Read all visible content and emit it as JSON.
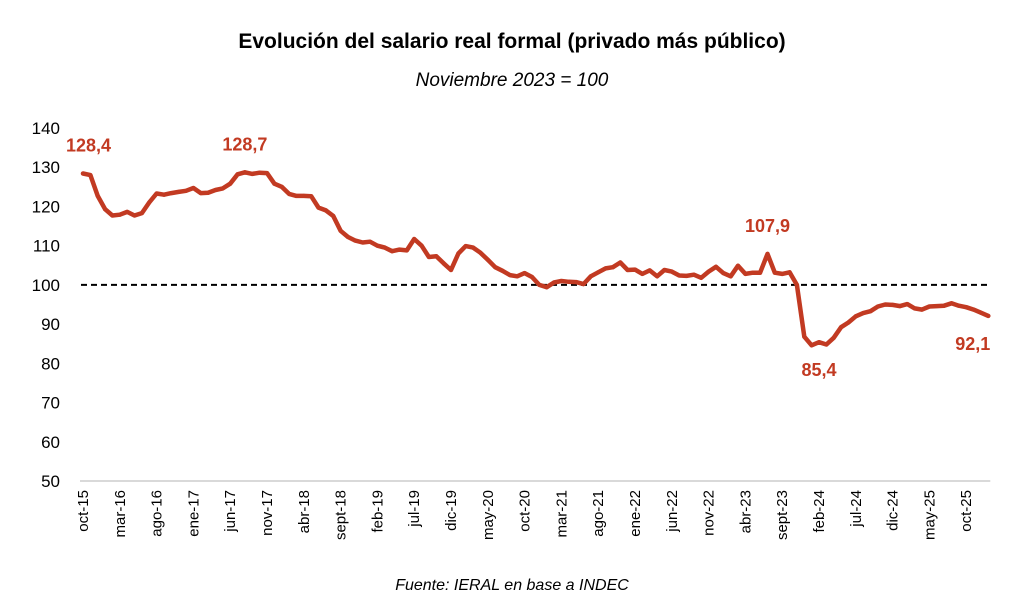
{
  "chart_data": {
    "type": "line",
    "title": "Evolución del salario real formal (privado más público)",
    "subtitle": "Noviembre 2023 = 100",
    "source": "Fuente: IERAL en base a INDEC",
    "xlabel": "",
    "ylabel": "",
    "ylim": [
      50,
      140
    ],
    "yticks": [
      "140",
      "130",
      "120",
      "110",
      "100",
      "90",
      "80",
      "70",
      "60",
      "50"
    ],
    "ytick_values": [
      140,
      130,
      120,
      110,
      100,
      90,
      80,
      70,
      60,
      50
    ],
    "xtick_labels": [
      "oct-15",
      "mar-16",
      "ago-16",
      "ene-17",
      "jun-17",
      "nov-17",
      "abr-18",
      "sept-18",
      "feb-19",
      "jul-19",
      "dic-19",
      "may-20",
      "oct-20",
      "mar-21",
      "ago-21",
      "ene-22",
      "jun-22",
      "nov-22",
      "abr-23",
      "sept-23",
      "feb-24",
      "jul-24",
      "dic-24",
      "may-25",
      "oct-25"
    ],
    "xtick_step_months": 5,
    "start_month": "oct-15",
    "reference_line": {
      "value": 100,
      "style": "dashed",
      "color": "#000000"
    },
    "series": [
      {
        "name": "Salario real formal",
        "color": "#c23a22",
        "values": [
          128.4,
          128.0,
          122.7,
          119.3,
          117.7,
          117.9,
          118.6,
          117.7,
          118.3,
          121.0,
          123.3,
          123.0,
          123.4,
          123.7,
          124.0,
          124.7,
          123.4,
          123.5,
          124.2,
          124.6,
          125.8,
          128.2,
          128.7,
          128.3,
          128.6,
          128.5,
          125.8,
          125.0,
          123.2,
          122.7,
          122.7,
          122.6,
          119.7,
          119.0,
          117.6,
          113.8,
          112.2,
          111.3,
          110.8,
          111.0,
          110.0,
          109.5,
          108.6,
          109.0,
          108.8,
          111.7,
          110.0,
          107.1,
          107.3,
          105.5,
          103.8,
          108.0,
          109.9,
          109.5,
          108.2,
          106.4,
          104.5,
          103.6,
          102.5,
          102.2,
          103.0,
          102.0,
          100.0,
          99.4,
          100.6,
          101.0,
          100.8,
          100.7,
          100.2,
          102.2,
          103.2,
          104.2,
          104.5,
          105.7,
          103.8,
          103.9,
          102.8,
          103.7,
          102.2,
          103.8,
          103.4,
          102.4,
          102.3,
          102.6,
          101.8,
          103.4,
          104.6,
          103.0,
          102.2,
          104.9,
          102.8,
          103.1,
          103.1,
          107.9,
          103.1,
          102.8,
          103.2,
          100.0,
          86.8,
          84.6,
          85.4,
          84.8,
          86.5,
          89.2,
          90.4,
          92.0,
          92.8,
          93.3,
          94.5,
          95.0,
          94.9,
          94.6,
          95.1,
          94.0,
          93.7,
          94.5,
          94.6,
          94.7,
          95.3,
          94.7,
          94.3,
          93.7,
          92.9,
          92.1
        ]
      }
    ],
    "annotations": [
      {
        "text": "128,4",
        "index": 0,
        "value": 128.4,
        "position": "above",
        "color": "#c23a22"
      },
      {
        "text": "128,7",
        "index": 22,
        "value": 128.7,
        "position": "above",
        "color": "#c23a22"
      },
      {
        "text": "107,9",
        "index": 93,
        "value": 107.9,
        "position": "above",
        "color": "#c23a22"
      },
      {
        "text": "85,4",
        "index": 100,
        "value": 85.4,
        "position": "below",
        "color": "#c23a22"
      },
      {
        "text": "92,1",
        "index": 123,
        "value": 92.1,
        "position": "below",
        "color": "#c23a22"
      }
    ],
    "grid": false,
    "axis_color": "#d9d9d9"
  }
}
